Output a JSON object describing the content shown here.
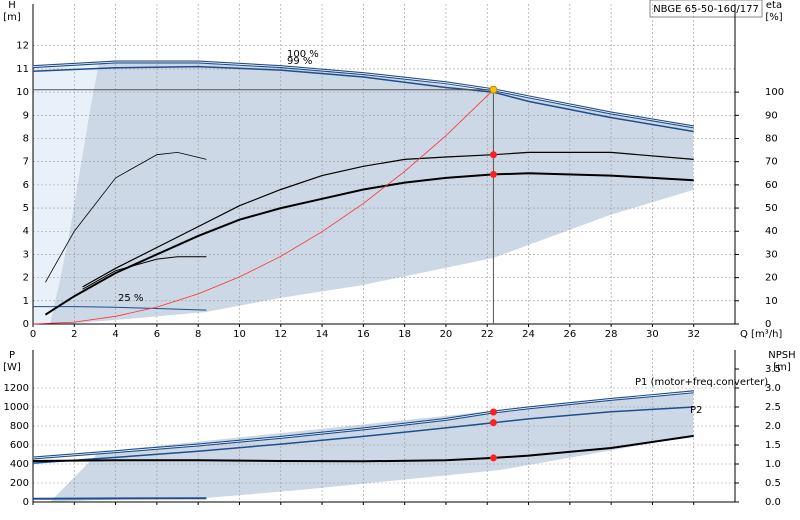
{
  "chart_data": [
    {
      "type": "line",
      "title": "NBGE 65-50-160/177",
      "y_label": "H",
      "y_unit": "[m]",
      "y2_label": "eta",
      "y2_unit": "[%]",
      "x_label": "Q [m³/h]",
      "xlim": [
        0,
        34
      ],
      "xticks": [
        0,
        2,
        4,
        6,
        8,
        10,
        12,
        14,
        16,
        18,
        20,
        22,
        24,
        26,
        28,
        30,
        32
      ],
      "ylim": [
        0,
        13.8
      ],
      "yticks": [
        0,
        1,
        2,
        3,
        4,
        5,
        6,
        7,
        8,
        9,
        10,
        11,
        12
      ],
      "y2lim": [
        0,
        138
      ],
      "y2ticks": [
        0,
        10,
        20,
        30,
        40,
        50,
        60,
        70,
        80,
        90,
        100
      ],
      "grid": true,
      "series": [
        {
          "name": "100 %",
          "color": "#1f4e8c",
          "width": 3,
          "x": [
            0,
            4,
            8,
            12,
            16,
            20,
            22.3,
            24,
            28,
            32
          ],
          "values": [
            11.1,
            11.3,
            11.3,
            11.1,
            10.8,
            10.4,
            10.1,
            9.8,
            9.1,
            8.5
          ]
        },
        {
          "name": "99 %",
          "color": "#1f4e8c",
          "width": 1.5,
          "x": [
            0,
            4,
            8,
            12,
            16,
            20,
            22.3,
            24,
            28,
            32
          ],
          "values": [
            10.9,
            11.05,
            11.1,
            10.95,
            10.65,
            10.2,
            10.0,
            9.6,
            8.9,
            8.3
          ]
        },
        {
          "name": "25 %",
          "color": "#1f4e8c",
          "width": 1,
          "x": [
            0,
            2,
            4,
            6,
            8.4
          ],
          "values": [
            0.75,
            0.75,
            0.72,
            0.67,
            0.6
          ]
        },
        {
          "axis": "y2",
          "color": "#000000",
          "width": 1.2,
          "x": [
            2.4,
            4,
            6,
            8,
            10,
            12,
            14,
            16,
            18,
            20,
            22.3,
            24,
            28,
            32
          ],
          "values": [
            16,
            24,
            33,
            42,
            51,
            58,
            64,
            68,
            71,
            72,
            73,
            74,
            74,
            71
          ]
        },
        {
          "axis": "y2",
          "color": "#000000",
          "width": 2,
          "x": [
            0.6,
            2,
            4,
            6,
            8,
            10,
            12,
            14,
            16,
            18,
            20,
            22.3,
            24,
            28,
            32
          ],
          "values": [
            4,
            12,
            22,
            30,
            38,
            45,
            50,
            54,
            58,
            61,
            63,
            64.5,
            65,
            64,
            62
          ]
        },
        {
          "axis": "y2",
          "color": "#000000",
          "width": 0.8,
          "x": [
            0.6,
            2,
            4,
            6,
            7,
            8.4
          ],
          "values": [
            18,
            40,
            63,
            73,
            74,
            71
          ]
        },
        {
          "axis": "y2",
          "color": "#000000",
          "width": 1,
          "x": [
            2.4,
            4,
            6,
            7,
            8.4
          ],
          "values": [
            15,
            23,
            28,
            29,
            29
          ]
        },
        {
          "color": "#ff3030",
          "width": 0.8,
          "x": [
            0,
            2,
            4,
            6,
            8,
            10,
            12,
            14,
            16,
            18,
            20,
            22.3
          ],
          "values": [
            0,
            0.08,
            0.33,
            0.73,
            1.3,
            2.03,
            2.92,
            3.98,
            5.2,
            6.58,
            8.12,
            10.1
          ]
        },
        {
          "marker": "#f5c400",
          "x": [
            22.3
          ],
          "values": [
            10.1
          ]
        },
        {
          "axis": "y2",
          "marker": "#ff2020",
          "x": [
            22.3,
            22.3
          ],
          "values": [
            73,
            64.5
          ]
        }
      ]
    },
    {
      "type": "line",
      "y_label": "P",
      "y_unit": "[W]",
      "y2_label": "NPSH",
      "y2_unit": "[m]",
      "xlim": [
        0,
        34
      ],
      "xticks": [
        0,
        2,
        4,
        6,
        8,
        10,
        12,
        14,
        16,
        18,
        20,
        22,
        24,
        26,
        28,
        30,
        32
      ],
      "ylim": [
        0,
        1600
      ],
      "yticks": [
        0,
        200,
        400,
        600,
        800,
        1000,
        1200
      ],
      "y2lim": [
        0,
        4
      ],
      "y2ticks": [
        {
          "value": 0,
          "label": "0.0"
        },
        0.5,
        {
          "value": 1,
          "label": "1.0"
        },
        1.5,
        {
          "value": 2,
          "label": "2.0"
        },
        2.5,
        {
          "value": 3,
          "label": "3.0"
        },
        3.5
      ],
      "grid": true,
      "series": [
        {
          "name": "P1 (motor+freq.converter)",
          "color": "#1f4e8c",
          "width": 3,
          "x": [
            0,
            4,
            8,
            12,
            16,
            20,
            22.3,
            24,
            28,
            32
          ],
          "values": [
            463,
            530,
            600,
            680,
            770,
            870,
            947,
            990,
            1080,
            1160
          ]
        },
        {
          "name": "P2",
          "color": "#1f4e8c",
          "width": 1.5,
          "x": [
            0,
            4,
            8,
            12,
            16,
            20,
            22.3,
            24,
            28,
            32
          ],
          "values": [
            410,
            470,
            535,
            610,
            690,
            780,
            835,
            875,
            950,
            1000
          ]
        },
        {
          "axis": "y2",
          "color": "#000000",
          "width": 2,
          "x": [
            0,
            4,
            8,
            12,
            16,
            20,
            22.3,
            24,
            28,
            32
          ],
          "values": [
            1.08,
            1.1,
            1.1,
            1.08,
            1.07,
            1.1,
            1.16,
            1.22,
            1.42,
            1.74
          ]
        },
        {
          "color": "#1f4e8c",
          "width": 2,
          "x": [
            0,
            8.4
          ],
          "values": [
            35,
            40
          ]
        },
        {
          "marker": "#ff2020",
          "x": [
            22.3,
            22.3
          ],
          "values": [
            947,
            835
          ]
        },
        {
          "axis": "y2",
          "marker": "#ff2020",
          "x": [
            22.3
          ],
          "values": [
            1.16
          ]
        }
      ]
    }
  ]
}
